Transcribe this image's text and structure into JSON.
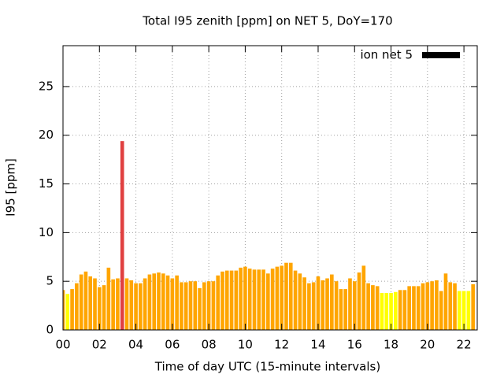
{
  "chart_data": {
    "type": "bar",
    "title": "Total I95 zenith [ppm] on NET 5, DoY=170",
    "x_label": "Time of day UTC (15-minute intervals)",
    "y_label": "I95 [ppm]",
    "x": [
      0,
      0.25,
      0.5,
      0.75,
      1,
      1.25,
      1.5,
      1.75,
      2,
      2.25,
      2.5,
      2.75,
      3,
      3.25,
      3.5,
      3.75,
      4,
      4.25,
      4.5,
      4.75,
      5,
      5.25,
      5.5,
      5.75,
      6,
      6.25,
      6.5,
      6.75,
      7,
      7.25,
      7.5,
      7.75,
      8,
      8.25,
      8.5,
      8.75,
      9,
      9.25,
      9.5,
      9.75,
      10,
      10.25,
      10.5,
      10.75,
      11,
      11.25,
      11.5,
      11.75,
      12,
      12.25,
      12.5,
      12.75,
      13,
      13.25,
      13.5,
      13.75,
      14,
      14.25,
      14.5,
      14.75,
      15,
      15.25,
      15.5,
      15.75,
      16,
      16.25,
      16.5,
      16.75,
      17,
      17.25,
      17.5,
      17.75,
      18,
      18.25,
      18.5,
      18.75,
      19,
      19.25,
      19.5,
      19.75,
      20,
      20.25,
      20.5,
      20.75,
      21,
      21.25,
      21.5,
      21.75,
      22,
      22.25,
      22.5
    ],
    "series": [
      {
        "name": "ion net 5",
        "color": "#000000",
        "values": [
          4.1,
          3.7,
          4.2,
          4.8,
          5.7,
          6.0,
          5.5,
          5.3,
          4.4,
          4.6,
          6.4,
          5.2,
          5.3,
          19.4,
          5.3,
          5.1,
          4.8,
          4.8,
          5.3,
          5.7,
          5.8,
          5.9,
          5.8,
          5.6,
          5.3,
          5.6,
          4.9,
          4.9,
          5.0,
          5.0,
          4.3,
          4.9,
          5.0,
          5.0,
          5.6,
          6.0,
          6.1,
          6.1,
          6.1,
          6.4,
          6.5,
          6.3,
          6.2,
          6.2,
          6.2,
          5.8,
          6.3,
          6.5,
          6.6,
          6.9,
          6.9,
          6.1,
          5.8,
          5.4,
          4.8,
          4.9,
          5.5,
          5.1,
          5.3,
          5.7,
          5.0,
          4.2,
          4.2,
          5.3,
          5.0,
          5.9,
          6.6,
          4.8,
          4.6,
          4.5,
          3.8,
          3.8,
          3.8,
          3.9,
          4.1,
          4.1,
          4.5,
          4.5,
          4.5,
          4.8,
          4.9,
          5.0,
          5.1,
          4.0,
          5.8,
          4.9,
          4.8,
          4.0,
          4.0,
          4.0,
          4.7
        ],
        "colors": [
          "#ffa500",
          "#ffff00",
          "#ffa500",
          "#ffa500",
          "#ffa500",
          "#ffa500",
          "#ffa500",
          "#ffa500",
          "#ffa500",
          "#ffa500",
          "#ffa500",
          "#ffa500",
          "#ffa500",
          "#e04040",
          "#ffa500",
          "#ffa500",
          "#ffa500",
          "#ffa500",
          "#ffa500",
          "#ffa500",
          "#ffa500",
          "#ffa500",
          "#ffa500",
          "#ffa500",
          "#ffa500",
          "#ffa500",
          "#ffa500",
          "#ffa500",
          "#ffa500",
          "#ffa500",
          "#ffa500",
          "#ffa500",
          "#ffa500",
          "#ffa500",
          "#ffa500",
          "#ffa500",
          "#ffa500",
          "#ffa500",
          "#ffa500",
          "#ffa500",
          "#ffa500",
          "#ffa500",
          "#ffa500",
          "#ffa500",
          "#ffa500",
          "#ffa500",
          "#ffa500",
          "#ffa500",
          "#ffa500",
          "#ffa500",
          "#ffa500",
          "#ffa500",
          "#ffa500",
          "#ffa500",
          "#ffa500",
          "#ffa500",
          "#ffa500",
          "#ffa500",
          "#ffa500",
          "#ffa500",
          "#ffa500",
          "#ffa500",
          "#ffa500",
          "#ffa500",
          "#ffa500",
          "#ffa500",
          "#ffa500",
          "#ffa500",
          "#ffa500",
          "#ffa500",
          "#ffff00",
          "#ffff00",
          "#ffff00",
          "#ffff00",
          "#ffa500",
          "#ffa500",
          "#ffa500",
          "#ffa500",
          "#ffa500",
          "#ffa500",
          "#ffa500",
          "#ffa500",
          "#ffa500",
          "#ffa500",
          "#ffa500",
          "#ffa500",
          "#ffa500",
          "#ffff00",
          "#ffff00",
          "#ffff00",
          "#ffa500"
        ]
      }
    ],
    "xlim": [
      0,
      22.73
    ],
    "xticks": [
      {
        "value": 0,
        "label": "00"
      },
      {
        "value": 2,
        "label": "02"
      },
      {
        "value": 4,
        "label": "04"
      },
      {
        "value": 6,
        "label": "06"
      },
      {
        "value": 8,
        "label": "08"
      },
      {
        "value": 10,
        "label": "10"
      },
      {
        "value": 12,
        "label": "12"
      },
      {
        "value": 14,
        "label": "14"
      },
      {
        "value": 16,
        "label": "16"
      },
      {
        "value": 18,
        "label": "18"
      },
      {
        "value": 20,
        "label": "20"
      },
      {
        "value": 22,
        "label": "22"
      }
    ],
    "ylim": [
      0,
      29.2
    ],
    "yticks": [
      0,
      5,
      10,
      15,
      20,
      25
    ],
    "grid": true,
    "legend": "top right"
  }
}
